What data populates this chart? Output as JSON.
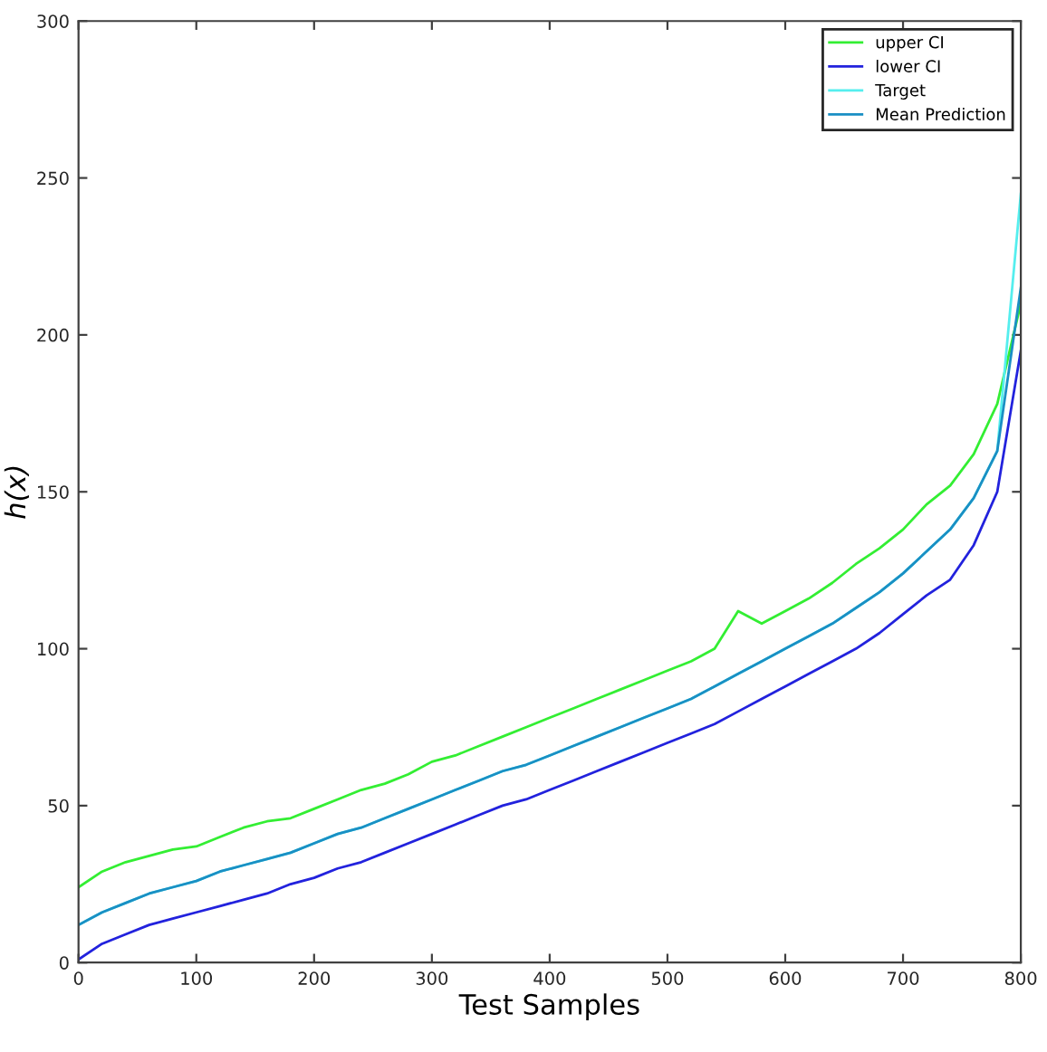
{
  "chart_data": {
    "type": "line",
    "xlabel": "Test Samples",
    "ylabel": "h(x)",
    "x": [
      0,
      20,
      40,
      60,
      80,
      100,
      120,
      140,
      160,
      180,
      200,
      220,
      240,
      260,
      280,
      300,
      320,
      340,
      360,
      380,
      400,
      420,
      440,
      460,
      480,
      500,
      520,
      540,
      560,
      580,
      600,
      620,
      640,
      660,
      680,
      700,
      720,
      740,
      760,
      780,
      800
    ],
    "series": [
      {
        "name": "upper CI",
        "color": "#33ee33",
        "values": [
          24,
          29,
          32,
          34,
          36,
          37,
          40,
          43,
          45,
          46,
          49,
          52,
          55,
          57,
          60,
          64,
          66,
          69,
          72,
          75,
          78,
          81,
          84,
          87,
          90,
          93,
          96,
          100,
          112,
          108,
          112,
          116,
          121,
          127,
          132,
          138,
          146,
          152,
          162,
          178,
          210
        ]
      },
      {
        "name": "lower CI",
        "color": "#2222dd",
        "values": [
          1,
          6,
          9,
          12,
          14,
          16,
          18,
          20,
          22,
          25,
          27,
          30,
          32,
          35,
          38,
          41,
          44,
          47,
          50,
          52,
          55,
          58,
          61,
          64,
          67,
          70,
          73,
          76,
          80,
          84,
          88,
          92,
          96,
          100,
          105,
          111,
          117,
          122,
          133,
          150,
          195
        ]
      },
      {
        "name": "Target",
        "color": "#55eeee",
        "values": [
          12,
          16,
          19,
          22,
          24,
          26,
          29,
          31,
          33,
          35,
          38,
          41,
          43,
          46,
          49,
          52,
          55,
          58,
          61,
          63,
          66,
          69,
          72,
          75,
          78,
          81,
          84,
          88,
          92,
          96,
          100,
          104,
          108,
          113,
          118,
          124,
          131,
          138,
          148,
          163,
          245
        ]
      },
      {
        "name": "Mean Prediction",
        "color": "#1a8fc4",
        "values": [
          12,
          16,
          19,
          22,
          24,
          26,
          29,
          31,
          33,
          35,
          38,
          41,
          43,
          46,
          49,
          52,
          55,
          58,
          61,
          63,
          66,
          69,
          72,
          75,
          78,
          81,
          84,
          88,
          92,
          96,
          100,
          104,
          108,
          113,
          118,
          124,
          131,
          138,
          148,
          163,
          215
        ]
      }
    ],
    "xlim": [
      0,
      800
    ],
    "xticks": [
      0,
      100,
      200,
      300,
      400,
      500,
      600,
      700,
      800
    ],
    "ylim": [
      0,
      300
    ],
    "yticks": [
      0,
      50,
      100,
      150,
      200,
      250,
      300
    ],
    "legend": "top right",
    "grid": false
  }
}
